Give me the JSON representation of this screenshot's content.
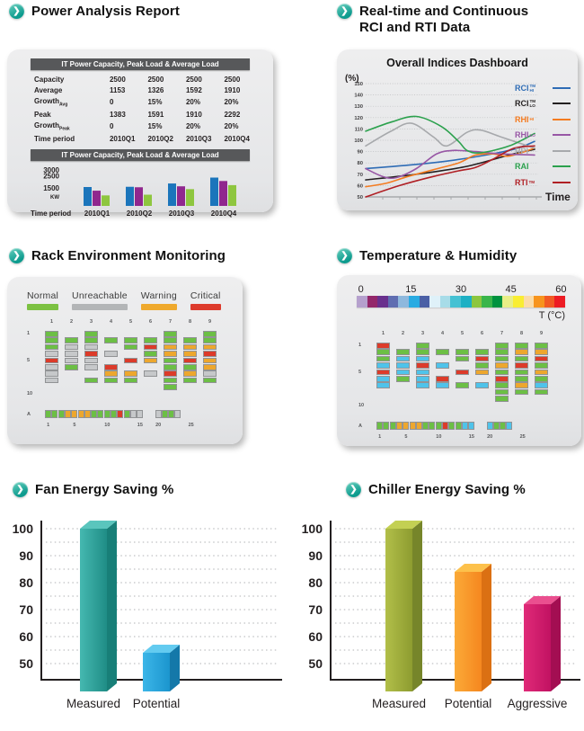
{
  "accent_color": "#14a094",
  "power": {
    "title": "Power Analysis Report",
    "table_header": "IT Power Capacity, Peak Load & Average Load",
    "chart_header": "IT Power Capacity, Peak Load & Average Load",
    "table_rows": [
      {
        "label": "Capacity",
        "sub": "",
        "values": [
          "2500",
          "2500",
          "2500",
          "2500"
        ]
      },
      {
        "label": "Average",
        "sub": "",
        "values": [
          "1153",
          "1326",
          "1592",
          "1910"
        ]
      },
      {
        "label": "Growth",
        "sub": "Avg",
        "values": [
          "0",
          "15%",
          "20%",
          "20%"
        ]
      },
      {
        "label": "Peak",
        "sub": "",
        "values": [
          "1383",
          "1591",
          "1910",
          "2292"
        ]
      },
      {
        "label": "Growth",
        "sub": "Peak",
        "values": [
          "0",
          "15%",
          "20%",
          "20%"
        ]
      },
      {
        "label": "Time period",
        "sub": "",
        "values": [
          "2010Q1",
          "2010Q2",
          "2010Q3",
          "2010Q4"
        ]
      }
    ]
  },
  "indices": {
    "title_line1": "Real-time and Continuous",
    "title_line2": "RCI and RTI Data",
    "chart_title": "Overall Indices Dashboard"
  },
  "rack": {
    "title": "Rack Environment Monitoring"
  },
  "temperature": {
    "title": "Temperature & Humidity"
  },
  "fan": {
    "title": "Fan Energy Saving %"
  },
  "chiller": {
    "title": "Chiller Energy Saving %"
  },
  "cell_colors": {
    "g": "#6cbf45",
    "G": "#c6c8ca",
    "o": "#eda72e",
    "r": "#dc3b2a",
    "c": "#4fc3ea"
  },
  "chart_data": [
    {
      "id": "power_bars",
      "type": "bar",
      "title": "IT Power Capacity, Peak Load & Average Load",
      "categories": [
        "2010Q1",
        "2010Q2",
        "2010Q3",
        "2010Q4"
      ],
      "series": [
        {
          "name": "blue",
          "color": "#1b75bb",
          "values": [
            1600,
            1620,
            1900,
            2400
          ]
        },
        {
          "name": "purple",
          "color": "#90278e",
          "values": [
            1290,
            1580,
            1660,
            2110
          ]
        },
        {
          "name": "green",
          "color": "#8ec63f",
          "values": [
            890,
            950,
            1420,
            1760
          ]
        }
      ],
      "xlabel": "Time period",
      "ylabel": "KW",
      "yticks": [
        3000,
        2500,
        1500
      ],
      "ylim": [
        0,
        3200
      ]
    },
    {
      "id": "indices_lines",
      "type": "line",
      "title": "Overall Indices Dashboard",
      "ylabel": "(%)",
      "xlabel": "Time",
      "ylim": [
        50,
        150
      ],
      "yticks": [
        150,
        140,
        130,
        120,
        110,
        100,
        90,
        80,
        70,
        60,
        50
      ],
      "legend_position": "right",
      "series": [
        {
          "name": "RCI_HI",
          "base": "RCI",
          "sup": "TM",
          "sub": "HI",
          "color": "#2e6cb5",
          "points": [
            [
              0,
              75
            ],
            [
              25,
              78
            ],
            [
              50,
              82
            ],
            [
              75,
              88
            ],
            [
              90,
              93
            ],
            [
              100,
              99
            ]
          ]
        },
        {
          "name": "RCI_LO",
          "base": "RCI",
          "sup": "TM",
          "sub": "LO",
          "color": "#231f20",
          "points": [
            [
              0,
              65
            ],
            [
              30,
              70
            ],
            [
              60,
              77
            ],
            [
              85,
              87
            ],
            [
              100,
              92
            ]
          ]
        },
        {
          "name": "RHI_HI",
          "base": "RHI",
          "sup": "",
          "sub": "HI",
          "color": "#f47b20",
          "points": [
            [
              0,
              59
            ],
            [
              12,
              62
            ],
            [
              25,
              68
            ],
            [
              40,
              74
            ],
            [
              55,
              80
            ],
            [
              65,
              87
            ],
            [
              75,
              88
            ],
            [
              85,
              86
            ],
            [
              100,
              93
            ]
          ]
        },
        {
          "name": "RHI_LO",
          "base": "RHI",
          "sup": "",
          "sub": "LO",
          "color": "#9857a5",
          "points": [
            [
              0,
              75
            ],
            [
              10,
              68
            ],
            [
              18,
              67
            ],
            [
              30,
              75
            ],
            [
              42,
              88
            ],
            [
              52,
              91
            ],
            [
              65,
              90
            ],
            [
              80,
              88
            ],
            [
              100,
              87
            ]
          ]
        },
        {
          "name": "RPI",
          "base": "RPI",
          "sup": "",
          "sub": "",
          "color": "#a7a9ac",
          "points": [
            [
              0,
              95
            ],
            [
              15,
              108
            ],
            [
              27,
              115
            ],
            [
              40,
              103
            ],
            [
              48,
              95
            ],
            [
              60,
              107
            ],
            [
              68,
              109
            ],
            [
              80,
              103
            ],
            [
              100,
              93
            ]
          ]
        },
        {
          "name": "RAI",
          "base": "RAI",
          "sup": "",
          "sub": "",
          "color": "#2ba14d",
          "points": [
            [
              0,
              108
            ],
            [
              15,
              116
            ],
            [
              30,
              121
            ],
            [
              45,
              112
            ],
            [
              55,
              99
            ],
            [
              60,
              91
            ],
            [
              68,
              89
            ],
            [
              85,
              95
            ],
            [
              100,
              106
            ]
          ]
        },
        {
          "name": "RTI",
          "base": "RTI",
          "sup": "TM",
          "sub": "",
          "color": "#b01f24",
          "points": [
            [
              0,
              50
            ],
            [
              20,
              60
            ],
            [
              40,
              68
            ],
            [
              55,
              73
            ],
            [
              65,
              76
            ],
            [
              75,
              83
            ],
            [
              88,
              93
            ],
            [
              100,
              95
            ]
          ]
        }
      ]
    },
    {
      "id": "rack_env",
      "type": "heatmap",
      "title": "Rack Environment Monitoring",
      "legend": [
        {
          "label": "Normal",
          "color": "#7cc142"
        },
        {
          "label": "Unreachable",
          "color": "#b3b5b7"
        },
        {
          "label": "Warning",
          "color": "#efa92d"
        },
        {
          "label": "Critical",
          "color": "#dd3a2c"
        }
      ],
      "col_headers": [
        "1",
        "2",
        "3",
        "4",
        "5",
        "6",
        "7",
        "8",
        "9"
      ],
      "row_labels": [
        {
          "text": "1",
          "row": 0
        },
        {
          "text": "5",
          "row": 4
        },
        {
          "text": "10",
          "row": 9
        }
      ],
      "columns": [
        "gggGrGGG..",
        ".gGGGg....",
        "ggGrGG.g..",
        ".g.G.rog..",
        ".gg.r.og..",
        ".grgo.G...",
        "ggooggrgg.",
        ".goorgog..",
        "ggorooGg.."
      ],
      "strip_label": "A",
      "strip_a": "gggooooggggrgGG",
      "strip_b": "GggG",
      "axis_labels": [
        1,
        5,
        10,
        15,
        20,
        25
      ]
    },
    {
      "id": "temp_hum",
      "type": "heatmap",
      "title": "Temperature & Humidity",
      "scale_labels": [
        "0",
        "15",
        "30",
        "45",
        "60"
      ],
      "scale_unit": "T (°C)",
      "scale_colors": [
        "#b5a0cd",
        "#93276a",
        "#69308d",
        "#5f6db1",
        "#8eb8dd",
        "#29abe2",
        "#4a5fa5",
        "#dff1f9",
        "#a7dce8",
        "#45c1d3",
        "#1db0c4",
        "#8cc63f",
        "#39b54a",
        "#00923f",
        "#e8ee86",
        "#f9ed32",
        "#fbdba7",
        "#f7941e",
        "#f15a24",
        "#ed1c24"
      ],
      "col_headers": [
        "1",
        "2",
        "3",
        "4",
        "5",
        "6",
        "7",
        "8",
        "9"
      ],
      "row_labels": [
        {
          "text": "1",
          "row": 0
        },
        {
          "text": "5",
          "row": 4
        },
        {
          "text": "10",
          "row": 9
        }
      ],
      "columns": [
        "rggcrcc...",
        ".gcccg....",
        "ggcrccc...",
        ".g.c.rc...",
        ".gg.r.g...",
        ".grgo.c...",
        "gggogrggg.",
        "gogrggog..",
        "gorgogcg.."
      ],
      "strip_label": "A",
      "strip_a": "gggoooogggrggcc",
      "strip_b": "cggc",
      "axis_labels": [
        1,
        5,
        10,
        15,
        20,
        25
      ]
    },
    {
      "id": "fan_saving",
      "type": "bar",
      "title": "Fan Energy Saving %",
      "categories": [
        "Measured",
        "Potential"
      ],
      "values": [
        100,
        54
      ],
      "yticks": [
        100,
        90,
        80,
        70,
        60,
        50
      ],
      "ylim": [
        44,
        103
      ],
      "layout": {
        "first": 58,
        "step": 70
      },
      "bar_colors": [
        {
          "front1": "#45b8b0",
          "front2": "#1f8d86",
          "side": "#187f78",
          "top": "#5ac5bd"
        },
        {
          "front1": "#3cb6e8",
          "front2": "#1b95ce",
          "side": "#1478a9",
          "top": "#63cbf0"
        }
      ]
    },
    {
      "id": "chiller_saving",
      "type": "bar",
      "title": "Chiller Energy Saving %",
      "categories": [
        "Measured",
        "Potential",
        "Aggressive"
      ],
      "values": [
        100,
        84,
        72
      ],
      "yticks": [
        100,
        90,
        80,
        70,
        60,
        50
      ],
      "ylim": [
        44,
        103
      ],
      "layout": {
        "first": 76,
        "step": 77
      },
      "bar_colors": [
        {
          "front1": "#b2bf49",
          "front2": "#8d9c30",
          "side": "#76852a",
          "top": "#c3d053"
        },
        {
          "front1": "#fbaa38",
          "front2": "#f5871f",
          "side": "#db7013",
          "top": "#fdc14b"
        },
        {
          "front1": "#e02a78",
          "front2": "#c11262",
          "side": "#a30e52",
          "top": "#ea4f8f"
        }
      ]
    }
  ]
}
